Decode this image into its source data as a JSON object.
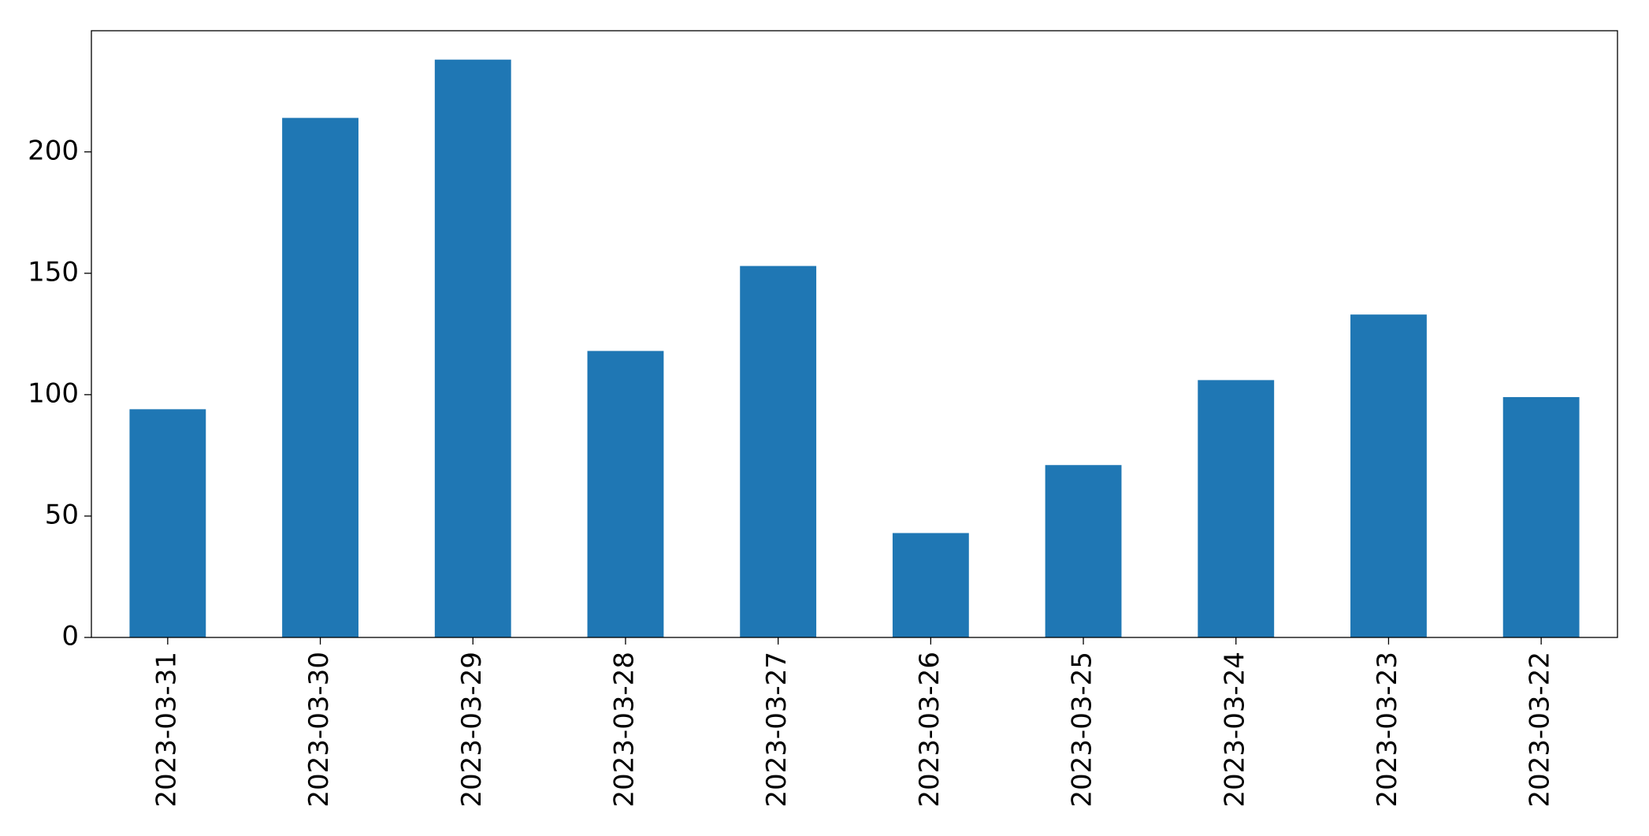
{
  "chart_data": {
    "type": "bar",
    "categories": [
      "2023-03-31",
      "2023-03-30",
      "2023-03-29",
      "2023-03-28",
      "2023-03-27",
      "2023-03-26",
      "2023-03-25",
      "2023-03-24",
      "2023-03-23",
      "2023-03-22"
    ],
    "values": [
      94,
      214,
      238,
      118,
      153,
      43,
      71,
      106,
      133,
      99
    ],
    "color": "#1f77b4",
    "ylim": [
      0,
      249.9
    ],
    "yticks": [
      0,
      50,
      100,
      150,
      200
    ],
    "grid": false
  }
}
